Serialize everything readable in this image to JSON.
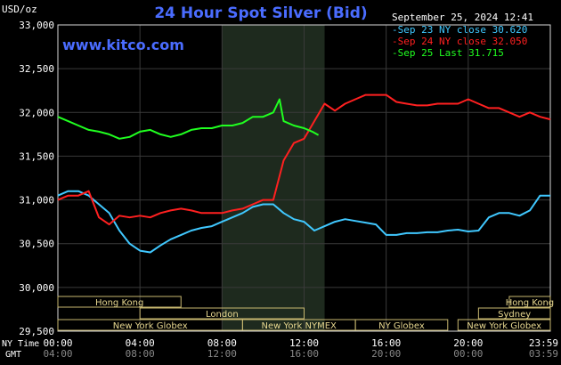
{
  "header": {
    "unit": "USD/oz",
    "title": "24 Hour Spot Silver (Bid)",
    "datetime": "September 25, 2024 12:41",
    "watermark": "www.kitco.com"
  },
  "legend": [
    {
      "label": "Sep 23 NY close 30.620",
      "color": "#40c8ff"
    },
    {
      "label": "Sep 24 NY close 32.050",
      "color": "#ff2020"
    },
    {
      "label": "Sep 25 Last 31.715",
      "color": "#20ff20"
    }
  ],
  "axes": {
    "ny_label": "NY Time",
    "gmt_label": "GMT",
    "ny_ticks": [
      "00:00",
      "04:00",
      "08:00",
      "12:00",
      "16:00",
      "20:00",
      "23:59"
    ],
    "gmt_ticks": [
      "04:00",
      "08:00",
      "12:00",
      "16:00",
      "20:00",
      "00:00",
      "03:59"
    ]
  },
  "sessions": [
    {
      "label": "Hong Kong",
      "start": 0,
      "end": 6,
      "row": 0
    },
    {
      "label": "London",
      "start": 4,
      "end": 12,
      "row": 1
    },
    {
      "label": "New York Globex",
      "start": 0,
      "end": 9,
      "row": 2
    },
    {
      "label": "New York NYMEX",
      "start": 9,
      "end": 14.5,
      "row": 2
    },
    {
      "label": "NY Globex",
      "start": 14.5,
      "end": 19,
      "row": 2
    },
    {
      "label": "Hong Kong",
      "start": 22,
      "end": 24,
      "row": 0
    },
    {
      "label": "Sydney",
      "start": 20.5,
      "end": 24,
      "row": 1
    },
    {
      "label": "New York Globex",
      "start": 19.5,
      "end": 24,
      "row": 2
    }
  ],
  "chart_data": {
    "type": "line",
    "xlabel": "NY Time",
    "ylabel": "USD/oz",
    "x_unit": "hours (NY time)",
    "xlim": [
      0,
      24
    ],
    "ylim": [
      29.5,
      33.0
    ],
    "y_ticks": [
      "29,500",
      "30,000",
      "30,500",
      "31,000",
      "31,500",
      "32,000",
      "32,500",
      "33,000"
    ],
    "shaded_region": [
      8.0,
      13.0
    ],
    "grid": true,
    "legend_placement": "top-right",
    "series": [
      {
        "name": "Sep 23 NY close 30.620",
        "color": "#40c8ff",
        "x": [
          0,
          0.5,
          1,
          1.5,
          2,
          2.5,
          3,
          3.5,
          4,
          4.5,
          5,
          5.5,
          6,
          6.5,
          7,
          7.5,
          8,
          8.5,
          9,
          9.5,
          10,
          10.5,
          11,
          11.5,
          12,
          12.5,
          13,
          13.5,
          14,
          14.5,
          15,
          15.5,
          16,
          16.5,
          17,
          17.5,
          18,
          18.5,
          19,
          19.5,
          20,
          20.5,
          21,
          21.5,
          22,
          22.5,
          23,
          23.5,
          24
        ],
        "y": [
          31.05,
          31.1,
          31.1,
          31.05,
          30.95,
          30.85,
          30.65,
          30.5,
          30.42,
          30.4,
          30.48,
          30.55,
          30.6,
          30.65,
          30.68,
          30.7,
          30.75,
          30.8,
          30.85,
          30.92,
          30.95,
          30.95,
          30.85,
          30.78,
          30.75,
          30.65,
          30.7,
          30.75,
          30.78,
          30.76,
          30.74,
          30.72,
          30.6,
          30.6,
          30.62,
          30.62,
          30.63,
          30.63,
          30.65,
          30.66,
          30.64,
          30.65,
          30.8,
          30.85,
          30.85,
          30.82,
          30.88,
          31.05,
          31.05
        ]
      },
      {
        "name": "Sep 24 NY close 32.050",
        "color": "#ff2020",
        "x": [
          0,
          0.5,
          1,
          1.5,
          2,
          2.5,
          3,
          3.5,
          4,
          4.5,
          5,
          5.5,
          6,
          6.5,
          7,
          7.5,
          8,
          8.5,
          9,
          9.5,
          10,
          10.5,
          11,
          11.5,
          12,
          12.5,
          13,
          13.5,
          14,
          14.5,
          15,
          15.5,
          16,
          16.5,
          17,
          17.5,
          18,
          18.5,
          19,
          19.5,
          20,
          20.5,
          21,
          21.5,
          22,
          22.5,
          23,
          23.5,
          24
        ],
        "y": [
          31.0,
          31.05,
          31.05,
          31.1,
          30.8,
          30.72,
          30.82,
          30.8,
          30.82,
          30.8,
          30.85,
          30.88,
          30.9,
          30.88,
          30.85,
          30.85,
          30.85,
          30.88,
          30.9,
          30.95,
          31.0,
          31.0,
          31.45,
          31.65,
          31.7,
          31.9,
          32.1,
          32.02,
          32.1,
          32.15,
          32.2,
          32.2,
          32.2,
          32.12,
          32.1,
          32.08,
          32.08,
          32.1,
          32.1,
          32.1,
          32.15,
          32.1,
          32.05,
          32.05,
          32.0,
          31.95,
          32.0,
          31.95,
          31.92
        ]
      },
      {
        "name": "Sep 25 Last 31.715",
        "color": "#20ff20",
        "x": [
          0,
          0.5,
          1,
          1.5,
          2,
          2.5,
          3,
          3.5,
          4,
          4.5,
          5,
          5.5,
          6,
          6.5,
          7,
          7.5,
          8,
          8.5,
          9,
          9.5,
          10,
          10.5,
          10.8,
          11,
          11.5,
          12,
          12.4,
          12.7
        ],
        "y": [
          31.95,
          31.9,
          31.85,
          31.8,
          31.78,
          31.75,
          31.7,
          31.72,
          31.78,
          31.8,
          31.75,
          31.72,
          31.75,
          31.8,
          31.82,
          31.82,
          31.85,
          31.85,
          31.88,
          31.95,
          31.95,
          32.0,
          32.15,
          31.9,
          31.85,
          31.82,
          31.78,
          31.74
        ]
      }
    ]
  }
}
